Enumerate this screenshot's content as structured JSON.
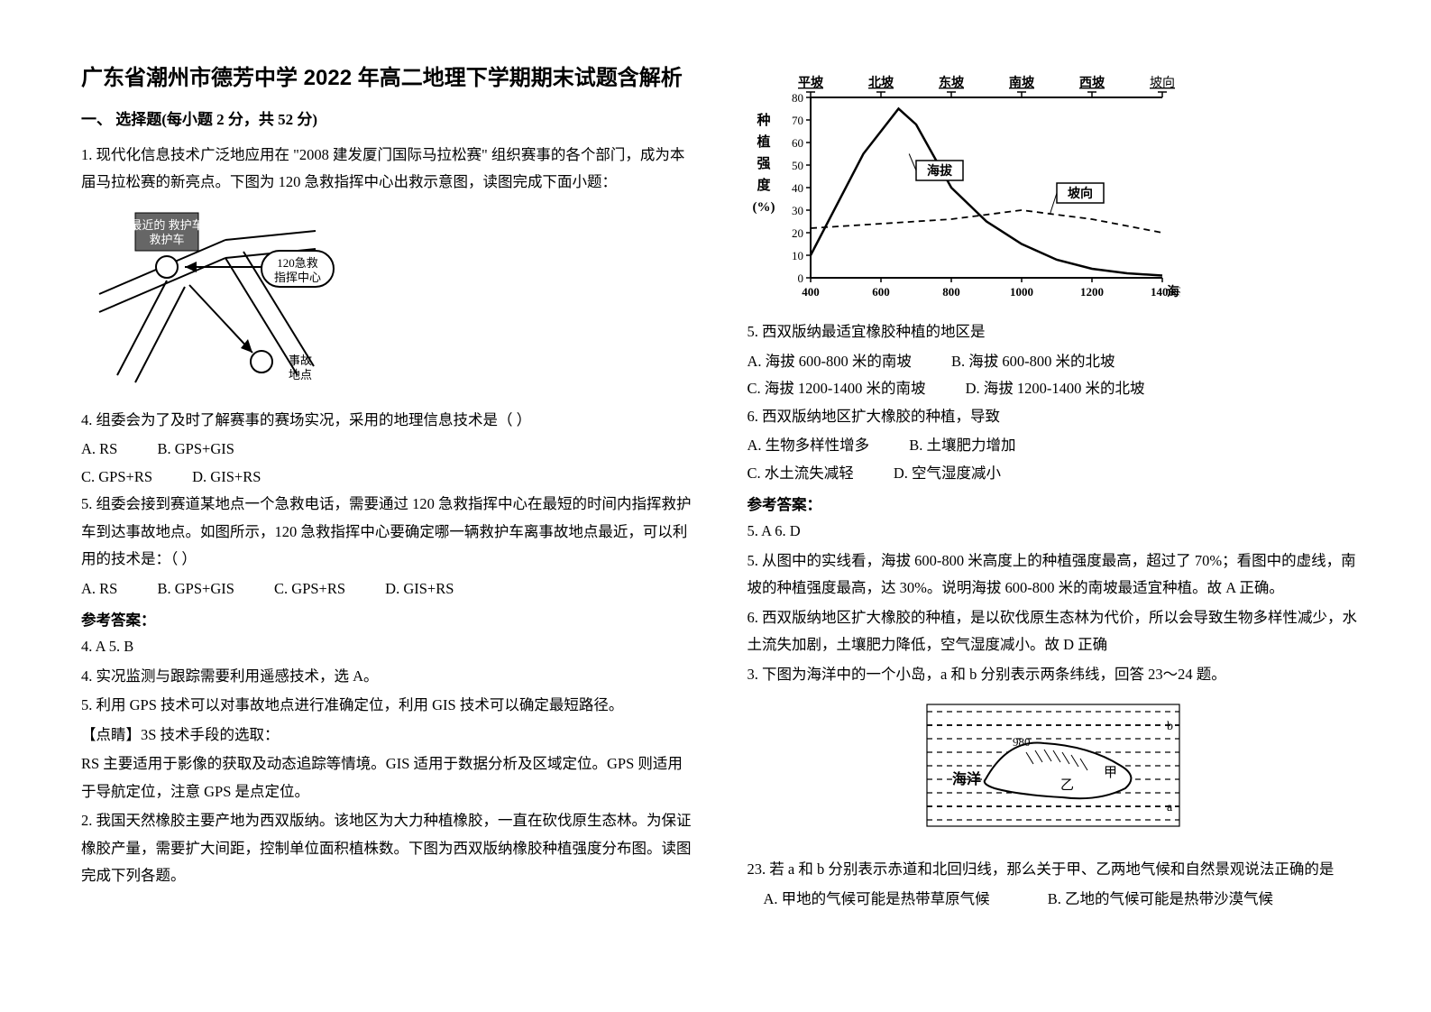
{
  "title": "广东省潮州市德芳中学 2022 年高二地理下学期期末试题含解析",
  "section1_header": "一、 选择题(每小题 2 分，共 52 分)",
  "q1_intro": "1. 现代化信息技术广泛地应用在 \"2008 建发厦门国际马拉松赛\" 组织赛事的各个部门，成为本届马拉松赛的新亮点。下图为 120 急救指挥中心出救示意图，读图完成下面小题：",
  "fig1": {
    "closest_car": "最近的\n救护车",
    "center": "120急救\n指挥中心",
    "accident": "事故\n地点"
  },
  "q1_4": "4. 组委会为了及时了解赛事的赛场实况，采用的地理信息技术是（        ）",
  "q1_4_opts": {
    "a": "A. RS",
    "b": "B. GPS+GIS",
    "c": "C. GPS+RS",
    "d": "D. GIS+RS"
  },
  "q1_5": "5. 组委会接到赛道某地点一个急救电话，需要通过 120 急救指挥中心在最短的时间内指挥救护车到达事故地点。如图所示，120 急救指挥中心要确定哪一辆救护车离事故地点最近，可以利用的技术是：（        ）",
  "q1_5_opts": {
    "a": "A. RS",
    "b": "B. GPS+GIS",
    "c": "C. GPS+RS",
    "d": "D. GIS+RS"
  },
  "ans_label": "参考答案：",
  "q1_ans": "4. A        5. B",
  "q1_exp4": "4. 实况监测与跟踪需要利用遥感技术，选 A。",
  "q1_exp5": "5. 利用 GPS 技术可以对事故地点进行准确定位，利用 GIS 技术可以确定最短路径。",
  "q1_tip_label": "【点睛】3S 技术手段的选取：",
  "q1_tip": "RS 主要适用于影像的获取及动态追踪等情境。GIS 适用于数据分析及区域定位。GPS 则适用于导航定位，注意 GPS 是点定位。",
  "q2_intro": "2. 我国天然橡胶主要产地为西双版纳。该地区为大力种植橡胶，一直在砍伐原生态林。为保证橡胶产量，需要扩大间距，控制单位面积植株数。下图为西双版纳橡胶种植强度分布图。读图完成下列各题。",
  "chart": {
    "top_labels": [
      "平坡",
      "北坡",
      "东坡",
      "南坡",
      "西坡",
      "坡向"
    ],
    "y_label_top": "种",
    "y_label_mid1": "植",
    "y_label_mid2": "强",
    "y_label_mid3": "度",
    "y_label_bot": "(%)",
    "x_label": "海拔（米）",
    "legend_alt": "海拔",
    "legend_aspect": "坡向",
    "y_ticks": [
      0,
      10,
      20,
      30,
      40,
      50,
      60,
      70,
      80
    ],
    "x_ticks": [
      400,
      600,
      800,
      1000,
      1200,
      1400
    ],
    "alt_series": [
      {
        "x": 400,
        "y": 10
      },
      {
        "x": 550,
        "y": 55
      },
      {
        "x": 650,
        "y": 75
      },
      {
        "x": 700,
        "y": 68
      },
      {
        "x": 800,
        "y": 40
      },
      {
        "x": 900,
        "y": 25
      },
      {
        "x": 1000,
        "y": 15
      },
      {
        "x": 1100,
        "y": 8
      },
      {
        "x": 1200,
        "y": 4
      },
      {
        "x": 1300,
        "y": 2
      },
      {
        "x": 1400,
        "y": 1
      }
    ],
    "aspect_series": [
      {
        "x": 400,
        "y": 22
      },
      {
        "x": 500,
        "y": 23
      },
      {
        "x": 600,
        "y": 24
      },
      {
        "x": 700,
        "y": 25
      },
      {
        "x": 800,
        "y": 26
      },
      {
        "x": 900,
        "y": 28
      },
      {
        "x": 1000,
        "y": 30
      },
      {
        "x": 1100,
        "y": 28
      },
      {
        "x": 1200,
        "y": 26
      },
      {
        "x": 1300,
        "y": 23
      },
      {
        "x": 1400,
        "y": 20
      }
    ],
    "colors": {
      "axis": "#000000",
      "solid": "#000000",
      "dashed": "#000000",
      "bg": "#ffffff"
    },
    "line_width_solid": 2.5,
    "line_width_dashed": 1.8
  },
  "q2_5": "5. 西双版纳最适宜橡胶种植的地区是",
  "q2_5_opts": {
    "a": "A. 海拔 600-800 米的南坡",
    "b": "B. 海拔 600-800 米的北坡",
    "c": "C. 海拔 1200-1400 米的南坡",
    "d": "D. 海拔 1200-1400 米的北坡"
  },
  "q2_6": "6. 西双版纳地区扩大橡胶的种植，导致",
  "q2_6_opts": {
    "a": "A. 生物多样性增多",
    "b": "B. 土壤肥力增加",
    "c": "C. 水土流失减轻",
    "d": "D. 空气湿度减小"
  },
  "q2_ans": "5. A        6. D",
  "q2_exp5": "5. 从图中的实线看，海拔 600-800 米高度上的种植强度最高，超过了 70%；看图中的虚线，南坡的种植强度最高，达 30%。说明海拔 600-800 米的南坡最适宜种植。故 A 正确。",
  "q2_exp6": "6. 西双版纳地区扩大橡胶的种植，是以砍伐原生态林为代价，所以会导致生物多样性减少，水土流失加剧，土壤肥力降低，空气湿度减小。故 D 正确",
  "q3_intro": "3. 下图为海洋中的一个小岛，a 和 b 分别表示两条纬线，回答 23～24 题。",
  "fig3": {
    "ocean": "海洋",
    "jia": "甲",
    "yi": "乙",
    "peak": "980",
    "b": "b",
    "a": "a"
  },
  "q3_23": "23. 若 a 和 b 分别表示赤道和北回归线，那么关于甲、乙两地气候和自然景观说法正确的是",
  "q3_23_opts": {
    "a": "A. 甲地的气候可能是热带草原气候",
    "b": "B. 乙地的气候可能是热带沙漠气候"
  }
}
